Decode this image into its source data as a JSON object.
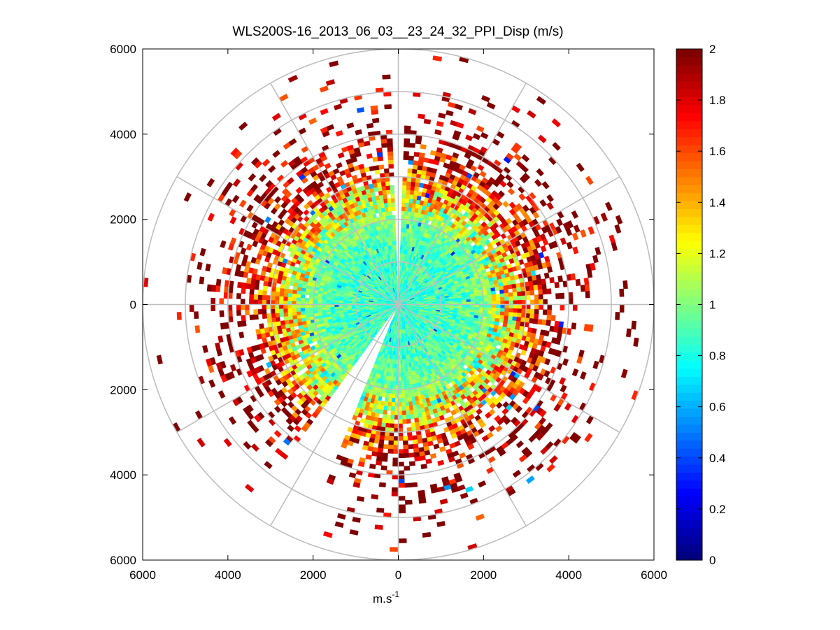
{
  "chart_data": {
    "type": "heatmap",
    "subtype": "polar-ppi",
    "title": "WLS200S-16_2013_06_03__23_24_32_PPI_Disp (m/s)",
    "xlabel_base": "m.s",
    "xlabel_sup": "-1",
    "ylabel": "",
    "xlim": [
      -6000,
      6000
    ],
    "ylim": [
      -6000,
      6000
    ],
    "x_ticks": [
      -6000,
      -4000,
      -2000,
      0,
      2000,
      4000,
      6000
    ],
    "x_tick_labels": [
      "6000",
      "4000",
      "2000",
      "0",
      "2000",
      "4000",
      "6000"
    ],
    "y_ticks": [
      6000,
      4000,
      2000,
      0,
      -2000,
      -4000,
      -6000
    ],
    "y_tick_labels": [
      "6000",
      "4000",
      "2000",
      "0",
      "2000",
      "4000",
      "6000"
    ],
    "range_rings_m": [
      1000,
      2000,
      3000,
      4000,
      5000,
      6000
    ],
    "spoke_angles_deg": [
      0,
      30,
      60,
      90,
      120,
      150,
      180,
      210,
      240,
      270,
      300,
      330
    ],
    "max_range_m": 6000,
    "range_gate_m": 100,
    "beam_step_deg": 2,
    "gaps_deg": [
      [
        358.5,
        1.5
      ],
      [
        204,
        215
      ]
    ],
    "colorbar": {
      "colormap": "jet",
      "min": 0,
      "max": 2,
      "ticks": [
        0,
        0.2,
        0.4,
        0.6,
        0.8,
        1,
        1.2,
        1.4,
        1.6,
        1.8,
        2
      ],
      "tick_labels": [
        "0",
        "0.2",
        "0.4",
        "0.6",
        "0.8",
        "1",
        "1.2",
        "1.4",
        "1.6",
        "1.8",
        "2"
      ]
    },
    "value_profile": {
      "range_m": [
        0,
        1500,
        2000,
        2500,
        3000,
        3500,
        4000,
        6000
      ],
      "mean_disp_ms": [
        0.85,
        0.9,
        1.0,
        1.2,
        1.55,
        1.85,
        2.0,
        2.0
      ]
    },
    "data_density_profile": {
      "range_m": [
        0,
        2000,
        2800,
        3500,
        4200,
        5000,
        6000
      ],
      "fraction_filled": [
        1.0,
        1.0,
        0.92,
        0.55,
        0.25,
        0.08,
        0.02
      ]
    }
  }
}
